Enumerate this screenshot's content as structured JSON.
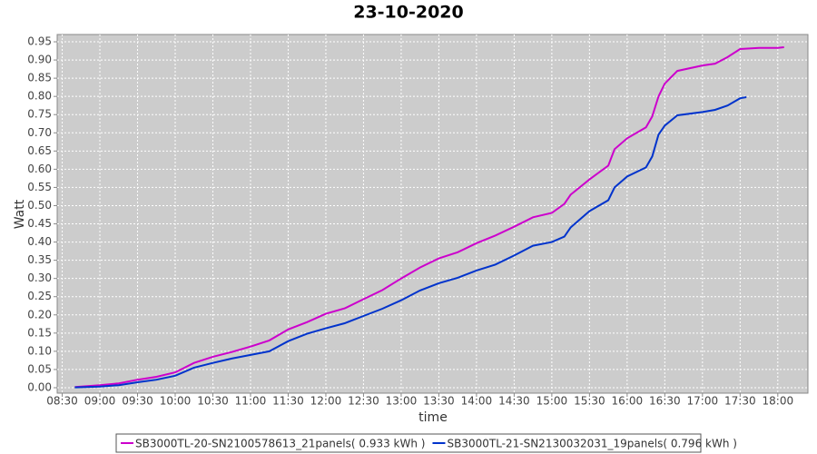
{
  "chart_data": {
    "type": "line",
    "title": "23-10-2020",
    "x_label": "time",
    "y_label": "Watt",
    "xlim": [
      "08:26",
      "18:24"
    ],
    "ylim": [
      -0.015,
      0.97
    ],
    "xticks": [
      "08:30",
      "09:00",
      "09:30",
      "10:00",
      "10:30",
      "11:00",
      "11:30",
      "12:00",
      "12:30",
      "13:00",
      "13:30",
      "14:00",
      "14:30",
      "15:00",
      "15:30",
      "16:00",
      "16:30",
      "17:00",
      "17:30",
      "18:00"
    ],
    "yticks": [
      {
        "value": 0,
        "label": "0.00"
      },
      0.05,
      {
        "value": 0.1,
        "label": "0.10"
      },
      0.15,
      {
        "value": 0.2,
        "label": "0.20"
      },
      0.25,
      {
        "value": 0.3,
        "label": "0.30"
      },
      0.35,
      {
        "value": 0.4,
        "label": "0.40"
      },
      0.45,
      {
        "value": 0.5,
        "label": "0.50"
      },
      0.55,
      {
        "value": 0.6,
        "label": "0.60"
      },
      0.65,
      {
        "value": 0.7,
        "label": "0.70"
      },
      0.75,
      {
        "value": 0.8,
        "label": "0.80"
      },
      0.85,
      {
        "value": 0.9,
        "label": "0.90"
      },
      0.95
    ],
    "grid": true,
    "series": [
      {
        "name": "SB3000TL-20-SN2100578613_21panels( 0.933 kWh )",
        "color": "#cc00cc",
        "x": [
          "08:40",
          "09:00",
          "09:15",
          "09:30",
          "09:45",
          "10:00",
          "10:15",
          "10:30",
          "10:45",
          "11:00",
          "11:15",
          "11:30",
          "11:45",
          "12:00",
          "12:15",
          "12:30",
          "12:45",
          "13:00",
          "13:15",
          "13:30",
          "13:45",
          "14:00",
          "14:15",
          "14:30",
          "14:45",
          "15:00",
          "15:10",
          "15:15",
          "15:30",
          "15:45",
          "15:50",
          "16:00",
          "16:15",
          "16:20",
          "16:25",
          "16:30",
          "16:40",
          "17:00",
          "17:10",
          "17:20",
          "17:30",
          "17:45",
          "18:00",
          "18:05"
        ],
        "values": [
          0.002,
          0.007,
          0.012,
          0.022,
          0.03,
          0.042,
          0.068,
          0.085,
          0.098,
          0.113,
          0.13,
          0.16,
          0.18,
          0.203,
          0.218,
          0.243,
          0.268,
          0.3,
          0.33,
          0.355,
          0.372,
          0.397,
          0.418,
          0.442,
          0.468,
          0.48,
          0.505,
          0.53,
          0.572,
          0.61,
          0.655,
          0.685,
          0.715,
          0.745,
          0.8,
          0.835,
          0.87,
          0.885,
          0.89,
          0.908,
          0.93,
          0.933,
          0.933,
          0.935
        ]
      },
      {
        "name": "SB3000TL-21-SN2130032031_19panels( 0.796 kWh )",
        "color": "#0033cc",
        "x": [
          "08:40",
          "09:00",
          "09:15",
          "09:30",
          "09:45",
          "10:00",
          "10:15",
          "10:30",
          "10:45",
          "11:00",
          "11:15",
          "11:30",
          "11:45",
          "12:00",
          "12:15",
          "12:30",
          "12:45",
          "13:00",
          "13:15",
          "13:30",
          "13:45",
          "14:00",
          "14:15",
          "14:30",
          "14:45",
          "15:00",
          "15:10",
          "15:15",
          "15:30",
          "15:45",
          "15:50",
          "16:00",
          "16:15",
          "16:20",
          "16:25",
          "16:30",
          "16:40",
          "17:00",
          "17:10",
          "17:20",
          "17:30",
          "17:35"
        ],
        "values": [
          0.001,
          0.003,
          0.007,
          0.015,
          0.022,
          0.033,
          0.055,
          0.068,
          0.08,
          0.09,
          0.1,
          0.128,
          0.148,
          0.163,
          0.177,
          0.197,
          0.217,
          0.24,
          0.267,
          0.287,
          0.302,
          0.322,
          0.338,
          0.363,
          0.39,
          0.4,
          0.415,
          0.44,
          0.485,
          0.515,
          0.55,
          0.58,
          0.605,
          0.635,
          0.695,
          0.72,
          0.748,
          0.757,
          0.763,
          0.775,
          0.795,
          0.798
        ]
      }
    ]
  }
}
